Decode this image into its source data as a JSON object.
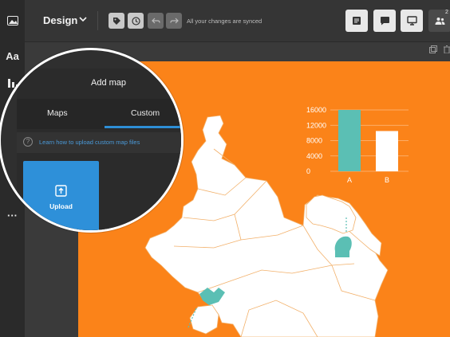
{
  "topbar": {
    "design_label": "Design",
    "sync_status": "All your changes are synced",
    "collab_badge": "2"
  },
  "rail": {
    "text_label": "Aa",
    "more_label": "···"
  },
  "panel": {
    "title": "Add map",
    "tabs": [
      {
        "label": "Maps"
      },
      {
        "label": "Custom"
      }
    ],
    "help_icon": "?",
    "help_link": "Learn how to upload custom map files",
    "upload_label": "Upload"
  },
  "chart_data": {
    "type": "bar",
    "categories": [
      "A",
      "B"
    ],
    "values": [
      16000,
      10500
    ],
    "ylim": [
      0,
      16000
    ],
    "yticks": [
      "16000",
      "12000",
      "8000",
      "4000",
      "0"
    ],
    "ytick_values": [
      16000,
      12000,
      8000,
      4000,
      0
    ],
    "colors": {
      "bar": "#5bbfb4",
      "bar_alt": "#ffffff",
      "text": "#ffffff"
    }
  },
  "colors": {
    "accent": "#2e8ed6",
    "page_background": "#fb8319",
    "map_fill": "#ffffff",
    "marker": "#5bbfb4"
  }
}
